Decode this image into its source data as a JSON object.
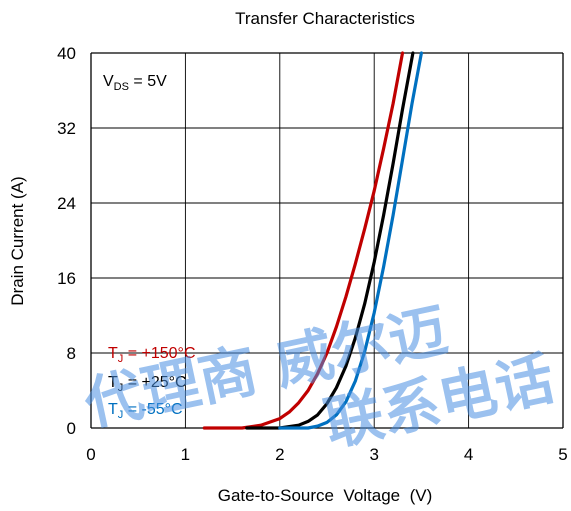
{
  "chart_data": {
    "type": "line",
    "title": "Transfer Characteristics",
    "xlabel": "Gate-to-Source  Voltage  (V)",
    "ylabel": "Drain Current (A)",
    "xlim": [
      0,
      5
    ],
    "ylim": [
      0,
      40
    ],
    "xticks": [
      "0",
      "1",
      "2",
      "3",
      "4",
      "5"
    ],
    "yticks": [
      "0",
      "8",
      "16",
      "24",
      "32",
      "40"
    ],
    "grid": true,
    "condition": {
      "prefix": "V",
      "subscript": "DS",
      "suffix": " = 5V"
    },
    "series": [
      {
        "name": "TJ = +150°C",
        "label_prefix": "T",
        "label_sub": "J",
        "label_suffix": " = +150°C",
        "color": "#c00000",
        "x": [
          1.2,
          1.6,
          1.8,
          2.0,
          2.1,
          2.2,
          2.3,
          2.4,
          2.5,
          2.6,
          2.7,
          2.8,
          2.9,
          3.0,
          3.1,
          3.2,
          3.3
        ],
        "y": [
          0,
          0,
          0.3,
          1.0,
          1.7,
          2.7,
          4.0,
          5.8,
          8.0,
          10.8,
          14.0,
          17.5,
          21.3,
          25.3,
          29.8,
          34.6,
          40
        ]
      },
      {
        "name": "TJ = +25°C",
        "label_prefix": "T",
        "label_sub": "J",
        "label_suffix": " = +25°C",
        "color": "#000000",
        "x": [
          1.65,
          2.0,
          2.2,
          2.3,
          2.4,
          2.5,
          2.6,
          2.7,
          2.8,
          2.9,
          3.0,
          3.1,
          3.2,
          3.3,
          3.41
        ],
        "y": [
          0,
          0,
          0.3,
          0.7,
          1.4,
          2.6,
          4.3,
          6.6,
          9.6,
          13.3,
          17.7,
          22.7,
          28.2,
          34.0,
          40
        ]
      },
      {
        "name": "TJ = -55°C",
        "label_prefix": "T",
        "label_sub": "J",
        "label_suffix": " = -55°C",
        "color": "#0070c0",
        "x": [
          2.0,
          2.3,
          2.4,
          2.5,
          2.6,
          2.7,
          2.8,
          2.9,
          3.0,
          3.1,
          3.2,
          3.3,
          3.4,
          3.5
        ],
        "y": [
          0,
          0,
          0.2,
          0.6,
          1.4,
          2.8,
          5.0,
          8.2,
          12.3,
          17.2,
          22.7,
          28.6,
          34.6,
          40
        ]
      }
    ]
  },
  "watermark": {
    "line1": "代理商 威尔迈",
    "line2": "联系电话",
    "color": "#4a90e2"
  }
}
